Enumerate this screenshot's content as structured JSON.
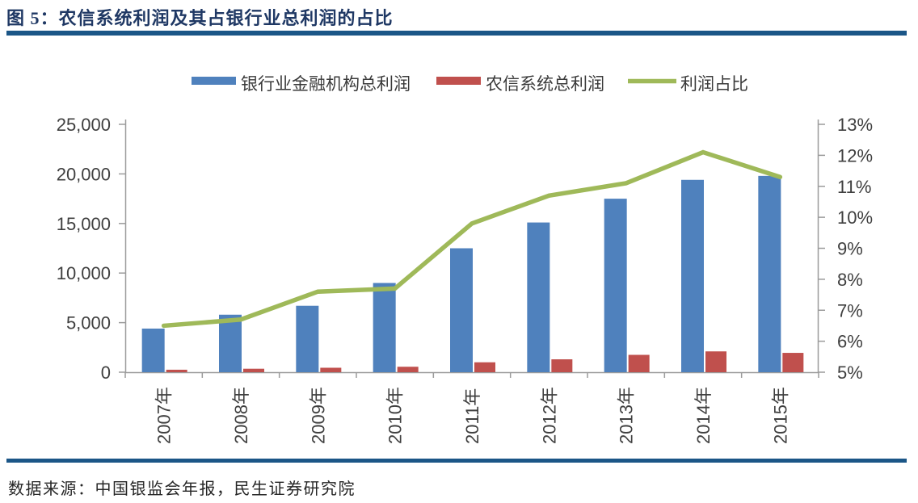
{
  "header": {
    "title": "图 5：农信系统利润及其占银行业总利润的占比"
  },
  "footer": {
    "source": "数据来源：中国银监会年报，民生证券研究院"
  },
  "colors": {
    "title": "#1f3864",
    "divider": "#1b5687",
    "source": "#262626",
    "bank_bar": "#4f81bd",
    "rcc_bar": "#c0504d",
    "ratio_line": "#9fb959",
    "axis": "#9b9b9b",
    "tick_label": "#3f3f3f",
    "legend_label": "#3a3a3a"
  },
  "chart_data": {
    "type": "bar",
    "subtype": "clustered-bars-with-line-combo-dual-axis",
    "title": "农信系统利润及其占银行业总利润的占比",
    "categories": [
      "2007年",
      "2008年",
      "2009年",
      "2010年",
      "2011年",
      "2012年",
      "2013年",
      "2014年",
      "2015年"
    ],
    "series": [
      {
        "id": "bank-total-profit",
        "name": "银行业金融机构总利润",
        "type": "bar",
        "axis": "left",
        "color": "#4f81bd",
        "values": [
          4400,
          5800,
          6700,
          9000,
          12500,
          15100,
          17500,
          19400,
          19800
        ]
      },
      {
        "id": "rcc-total-profit",
        "name": "农信系统总利润",
        "type": "bar",
        "axis": "left",
        "color": "#c0504d",
        "values": [
          250,
          350,
          450,
          550,
          1000,
          1300,
          1750,
          2100,
          1950
        ]
      },
      {
        "id": "profit-ratio",
        "name": "利润占比",
        "type": "line",
        "axis": "right",
        "color": "#9fb959",
        "unit": "%",
        "values": [
          6.5,
          6.7,
          7.6,
          7.7,
          9.8,
          10.7,
          11.1,
          12.1,
          11.3
        ]
      }
    ],
    "left_axis": {
      "min": 0,
      "max": 25000,
      "step": 5000,
      "tick_labels": [
        "0",
        "5,000",
        "10,000",
        "15,000",
        "20,000",
        "25,000"
      ]
    },
    "right_axis": {
      "min": 5,
      "max": 13,
      "step": 1,
      "unit": "%",
      "tick_labels": [
        "5%",
        "6%",
        "7%",
        "8%",
        "9%",
        "10%",
        "11%",
        "12%",
        "13%"
      ]
    },
    "legend_position": "top",
    "gridlines": false
  }
}
